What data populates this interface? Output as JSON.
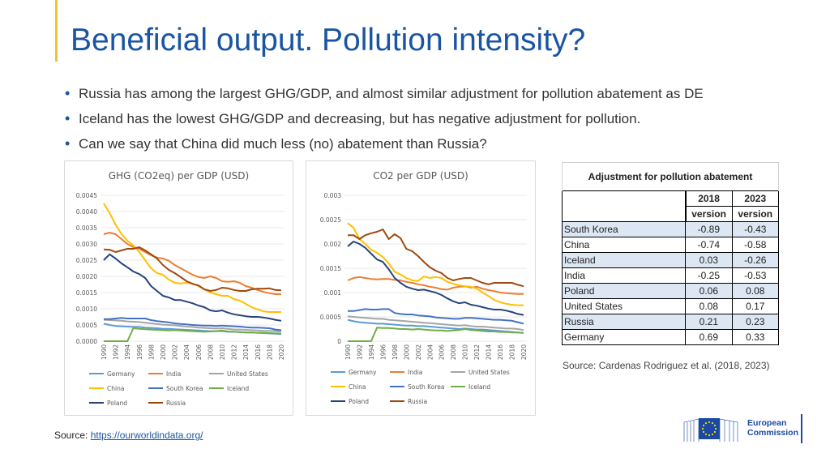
{
  "slide": {
    "title": "Beneficial output. Pollution intensity?",
    "bullets": [
      "Russia has among the largest GHG/GDP, and almost similar adjustment for pollution abatement as DE",
      "Iceland has the lowest GHG/GDP and decreasing, but has negative adjustment for pollution.",
      "Can we say that China did much less (no) abatement than Russia?"
    ],
    "source_label": "Source: ",
    "source_link": "https://ourworldindata.org/",
    "table_source": "Source: Cardenas Rodriguez et al. (2018, 2023)",
    "logo": {
      "line1": "European",
      "line2": "Commission"
    }
  },
  "table": {
    "caption": "Adjustment for pollution abatement",
    "col1": "2018 version",
    "col1_a": "2018",
    "col1_b": "version",
    "col2_a": "2023",
    "col2_b": "version",
    "rows": [
      {
        "country": "South Korea",
        "v2018": "-0.89",
        "v2023": "-0.43"
      },
      {
        "country": "China",
        "v2018": "-0.74",
        "v2023": "-0.58"
      },
      {
        "country": "Iceland",
        "v2018": "0.03",
        "v2023": "-0.26"
      },
      {
        "country": "India",
        "v2018": "-0.25",
        "v2023": "-0.53"
      },
      {
        "country": "Poland",
        "v2018": "0.06",
        "v2023": "0.08"
      },
      {
        "country": "United States",
        "v2018": "0.08",
        "v2023": "0.17"
      },
      {
        "country": "Russia",
        "v2018": "0.21",
        "v2023": "0.23"
      },
      {
        "country": "Germany",
        "v2018": "0.69",
        "v2023": "0.33"
      }
    ]
  },
  "chart_data": [
    {
      "type": "line",
      "title": "GHG (CO2eq) per GDP (USD)",
      "x": [
        1990,
        1991,
        1992,
        1993,
        1994,
        1995,
        1996,
        1997,
        1998,
        1999,
        2000,
        2001,
        2002,
        2003,
        2004,
        2005,
        2006,
        2007,
        2008,
        2009,
        2010,
        2011,
        2012,
        2013,
        2014,
        2015,
        2016,
        2017,
        2018,
        2019,
        2020
      ],
      "x_tick_labels": [
        "1990",
        "1992",
        "1994",
        "1996",
        "1998",
        "2000",
        "2002",
        "2004",
        "2006",
        "2008",
        "2010",
        "2012",
        "2014",
        "2016",
        "2018",
        "2020"
      ],
      "y_tick_labels": [
        "0.0000",
        "0.0005",
        "0.0010",
        "0.0015",
        "0.0020",
        "0.0025",
        "0.0030",
        "0.0035",
        "0.0040",
        "0.0045"
      ],
      "ylim": [
        0,
        0.0045
      ],
      "legend_placement": "bottom",
      "series": [
        {
          "name": "Germany",
          "color": "#5b9bd5",
          "values": [
            0.00054,
            0.0005,
            0.00047,
            0.00046,
            0.00045,
            0.00044,
            0.00044,
            0.00042,
            0.00041,
            0.0004,
            0.00038,
            0.00038,
            0.00037,
            0.00036,
            0.00035,
            0.00034,
            0.00033,
            0.00032,
            0.00031,
            0.00031,
            0.00031,
            0.00029,
            0.00029,
            0.00028,
            0.00027,
            0.00027,
            0.00026,
            0.00025,
            0.00024,
            0.00023,
            0.00022
          ]
        },
        {
          "name": "India",
          "color": "#ed7d31",
          "values": [
            0.0033,
            0.00335,
            0.0033,
            0.00315,
            0.003,
            0.0029,
            0.00285,
            0.00275,
            0.00265,
            0.00258,
            0.00255,
            0.00248,
            0.00235,
            0.00225,
            0.00215,
            0.00205,
            0.00198,
            0.00195,
            0.002,
            0.00195,
            0.00185,
            0.00183,
            0.00185,
            0.0018,
            0.0017,
            0.00165,
            0.00158,
            0.00152,
            0.00148,
            0.00145,
            0.00145
          ]
        },
        {
          "name": "United States",
          "color": "#a5a5a5",
          "values": [
            0.00066,
            0.00065,
            0.00064,
            0.00063,
            0.00061,
            0.0006,
            0.00059,
            0.00057,
            0.00055,
            0.00053,
            0.00051,
            0.0005,
            0.00049,
            0.00047,
            0.00045,
            0.00044,
            0.00042,
            0.00041,
            0.0004,
            0.00039,
            0.0004,
            0.00038,
            0.00036,
            0.00036,
            0.00035,
            0.00034,
            0.00033,
            0.00032,
            0.00032,
            0.00031,
            0.00029
          ]
        },
        {
          "name": "China",
          "color": "#ffc000",
          "values": [
            0.00425,
            0.00395,
            0.0036,
            0.0033,
            0.0031,
            0.00295,
            0.00275,
            0.0025,
            0.00225,
            0.0021,
            0.00205,
            0.0019,
            0.0018,
            0.00178,
            0.0018,
            0.00178,
            0.0017,
            0.0016,
            0.0015,
            0.00145,
            0.0014,
            0.0014,
            0.0013,
            0.00125,
            0.00115,
            0.00105,
            0.00098,
            0.00092,
            0.0009,
            0.0009,
            0.0009
          ]
        },
        {
          "name": "South Korea",
          "color": "#4472c4",
          "values": [
            0.00068,
            0.00068,
            0.0007,
            0.00072,
            0.0007,
            0.0007,
            0.0007,
            0.0007,
            0.00065,
            0.00062,
            0.0006,
            0.00058,
            0.00055,
            0.00053,
            0.00052,
            0.0005,
            0.00049,
            0.00048,
            0.00048,
            0.00047,
            0.00048,
            0.00047,
            0.00046,
            0.00045,
            0.00043,
            0.00042,
            0.00042,
            0.00041,
            0.0004,
            0.00036,
            0.00034
          ]
        },
        {
          "name": "Iceland",
          "color": "#70ad47",
          "values": [
            0.0,
            0.0,
            0.0,
            0.0,
            0.0,
            0.0004,
            0.00038,
            0.00037,
            0.00036,
            0.00035,
            0.00034,
            0.00033,
            0.00034,
            0.00033,
            0.00032,
            0.00031,
            0.0003,
            0.00029,
            0.0003,
            0.00031,
            0.00033,
            0.0003,
            0.00029,
            0.00028,
            0.00027,
            0.00027,
            0.00026,
            0.00026,
            0.00025,
            0.00024,
            0.00023
          ]
        },
        {
          "name": "Poland",
          "color": "#264478",
          "values": [
            0.0025,
            0.00268,
            0.00255,
            0.0024,
            0.00228,
            0.00215,
            0.00207,
            0.00195,
            0.0017,
            0.00155,
            0.0014,
            0.00135,
            0.00127,
            0.00127,
            0.00122,
            0.00117,
            0.0011,
            0.00105,
            0.00095,
            0.00092,
            0.00095,
            0.00088,
            0.00083,
            0.0008,
            0.00077,
            0.00075,
            0.00075,
            0.00073,
            0.0007,
            0.00066,
            0.00063
          ]
        },
        {
          "name": "Russia",
          "color": "#9e480e",
          "values": [
            0.00283,
            0.00282,
            0.00275,
            0.0028,
            0.00285,
            0.00285,
            0.0029,
            0.0028,
            0.00268,
            0.00255,
            0.00235,
            0.0022,
            0.0021,
            0.00198,
            0.00185,
            0.00177,
            0.00172,
            0.0016,
            0.00155,
            0.00158,
            0.00165,
            0.00163,
            0.00158,
            0.00155,
            0.00155,
            0.0016,
            0.00162,
            0.00162,
            0.00163,
            0.00158,
            0.00157
          ]
        }
      ]
    },
    {
      "type": "line",
      "title": "CO2 per GDP (USD)",
      "x": [
        1990,
        1991,
        1992,
        1993,
        1994,
        1995,
        1996,
        1997,
        1998,
        1999,
        2000,
        2001,
        2002,
        2003,
        2004,
        2005,
        2006,
        2007,
        2008,
        2009,
        2010,
        2011,
        2012,
        2013,
        2014,
        2015,
        2016,
        2017,
        2018,
        2019,
        2020
      ],
      "x_tick_labels": [
        "1990",
        "1992",
        "1994",
        "1996",
        "1998",
        "2000",
        "2002",
        "2004",
        "2006",
        "2008",
        "2010",
        "2012",
        "2014",
        "2016",
        "2018",
        "2020"
      ],
      "y_tick_labels": [
        "0",
        "0.0005",
        "0.001",
        "0.0015",
        "0.002",
        "0.0025",
        "0.003"
      ],
      "ylim": [
        0,
        0.003
      ],
      "legend_placement": "bottom",
      "series": [
        {
          "name": "Germany",
          "color": "#5b9bd5",
          "values": [
            0.00044,
            0.00041,
            0.00039,
            0.00038,
            0.00037,
            0.00036,
            0.00036,
            0.00035,
            0.00034,
            0.00033,
            0.00032,
            0.00032,
            0.00031,
            0.00031,
            0.0003,
            0.00029,
            0.00028,
            0.00027,
            0.00026,
            0.00025,
            0.00026,
            0.00025,
            0.00024,
            0.00024,
            0.00023,
            0.00022,
            0.00021,
            0.0002,
            0.00019,
            0.00018,
            0.00017
          ]
        },
        {
          "name": "India",
          "color": "#ed7d31",
          "values": [
            0.00125,
            0.0013,
            0.00132,
            0.0013,
            0.00128,
            0.00127,
            0.00128,
            0.00128,
            0.00126,
            0.00125,
            0.00122,
            0.0012,
            0.00117,
            0.00115,
            0.00112,
            0.0011,
            0.00107,
            0.00106,
            0.0011,
            0.00112,
            0.00113,
            0.0011,
            0.00112,
            0.00108,
            0.00105,
            0.00103,
            0.001,
            0.00099,
            0.00098,
            0.00097,
            0.00097
          ]
        },
        {
          "name": "United States",
          "color": "#a5a5a5",
          "values": [
            0.00051,
            0.0005,
            0.00049,
            0.00048,
            0.00047,
            0.00046,
            0.00046,
            0.00044,
            0.00043,
            0.00042,
            0.00041,
            0.0004,
            0.00039,
            0.00038,
            0.00037,
            0.00036,
            0.00035,
            0.00034,
            0.00033,
            0.00032,
            0.00033,
            0.00031,
            0.0003,
            0.0003,
            0.00029,
            0.00028,
            0.00027,
            0.00026,
            0.00026,
            0.00025,
            0.00023
          ]
        },
        {
          "name": "China",
          "color": "#ffc000",
          "values": [
            0.00243,
            0.00233,
            0.0021,
            0.002,
            0.00188,
            0.00182,
            0.00173,
            0.0016,
            0.00143,
            0.00137,
            0.0013,
            0.00125,
            0.00124,
            0.00133,
            0.0013,
            0.00132,
            0.0013,
            0.00122,
            0.00118,
            0.00115,
            0.00113,
            0.00112,
            0.00108,
            0.001,
            0.00093,
            0.00085,
            0.0008,
            0.00077,
            0.00075,
            0.00074,
            0.00074
          ]
        },
        {
          "name": "South Korea",
          "color": "#4472c4",
          "values": [
            0.00062,
            0.00062,
            0.00064,
            0.00066,
            0.00065,
            0.00065,
            0.00066,
            0.00066,
            0.00058,
            0.00056,
            0.00055,
            0.00055,
            0.00053,
            0.00052,
            0.00051,
            0.00049,
            0.00048,
            0.00047,
            0.00046,
            0.00046,
            0.00048,
            0.00048,
            0.00047,
            0.00046,
            0.00045,
            0.00044,
            0.00044,
            0.00043,
            0.00042,
            0.00039,
            0.00036
          ]
        },
        {
          "name": "Iceland",
          "color": "#70ad47",
          "values": [
            0.0,
            0.0,
            0.0,
            0.0,
            0.0,
            0.00028,
            0.00027,
            0.00027,
            0.00026,
            0.00025,
            0.00025,
            0.00024,
            0.00025,
            0.00024,
            0.00023,
            0.00022,
            0.00022,
            0.00021,
            0.00022,
            0.00023,
            0.00025,
            0.00023,
            0.00022,
            0.00021,
            0.0002,
            0.0002,
            0.00019,
            0.00019,
            0.00018,
            0.00018,
            0.00017
          ]
        },
        {
          "name": "Poland",
          "color": "#264478",
          "values": [
            0.00195,
            0.00205,
            0.002,
            0.00192,
            0.0018,
            0.00168,
            0.00163,
            0.00148,
            0.0013,
            0.0012,
            0.00112,
            0.00108,
            0.00105,
            0.00106,
            0.00103,
            0.001,
            0.00095,
            0.00088,
            0.00082,
            0.00078,
            0.0008,
            0.00075,
            0.00073,
            0.0007,
            0.00067,
            0.00065,
            0.00065,
            0.00063,
            0.0006,
            0.00056,
            0.00054
          ]
        },
        {
          "name": "Russia",
          "color": "#9e480e",
          "values": [
            0.00218,
            0.00218,
            0.0021,
            0.00218,
            0.00222,
            0.00225,
            0.0023,
            0.0021,
            0.0022,
            0.00212,
            0.0019,
            0.00185,
            0.00175,
            0.00163,
            0.00152,
            0.00145,
            0.0014,
            0.0013,
            0.00125,
            0.00128,
            0.0013,
            0.0013,
            0.00125,
            0.0012,
            0.00117,
            0.0012,
            0.0012,
            0.0012,
            0.0012,
            0.00116,
            0.00113
          ]
        }
      ]
    }
  ]
}
